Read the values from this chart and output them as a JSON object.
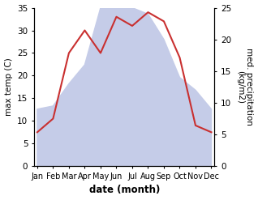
{
  "months": [
    "Jan",
    "Feb",
    "Mar",
    "Apr",
    "May",
    "Jun",
    "Jul",
    "Aug",
    "Sep",
    "Oct",
    "Nov",
    "Dec"
  ],
  "month_positions": [
    0,
    1,
    2,
    3,
    4,
    5,
    6,
    7,
    8,
    9,
    10,
    11
  ],
  "temperature": [
    7.5,
    10.5,
    25,
    30,
    25,
    33,
    31,
    34,
    32,
    24,
    9,
    7.5
  ],
  "precipitation": [
    9,
    9.5,
    13,
    16,
    25,
    33,
    25,
    24,
    20,
    14,
    12,
    9
  ],
  "temp_color": "#c93030",
  "precip_fill_color": "#c5cce8",
  "temp_ylim": [
    0,
    35
  ],
  "precip_ylim": [
    0,
    25
  ],
  "temp_yticks": [
    0,
    5,
    10,
    15,
    20,
    25,
    30,
    35
  ],
  "precip_yticks": [
    0,
    5,
    10,
    15,
    20,
    25
  ],
  "xlabel": "date (month)",
  "ylabel_left": "max temp (C)",
  "ylabel_right": "med. precipitation\n(kg/m2)",
  "figsize": [
    3.18,
    2.47
  ],
  "dpi": 100
}
